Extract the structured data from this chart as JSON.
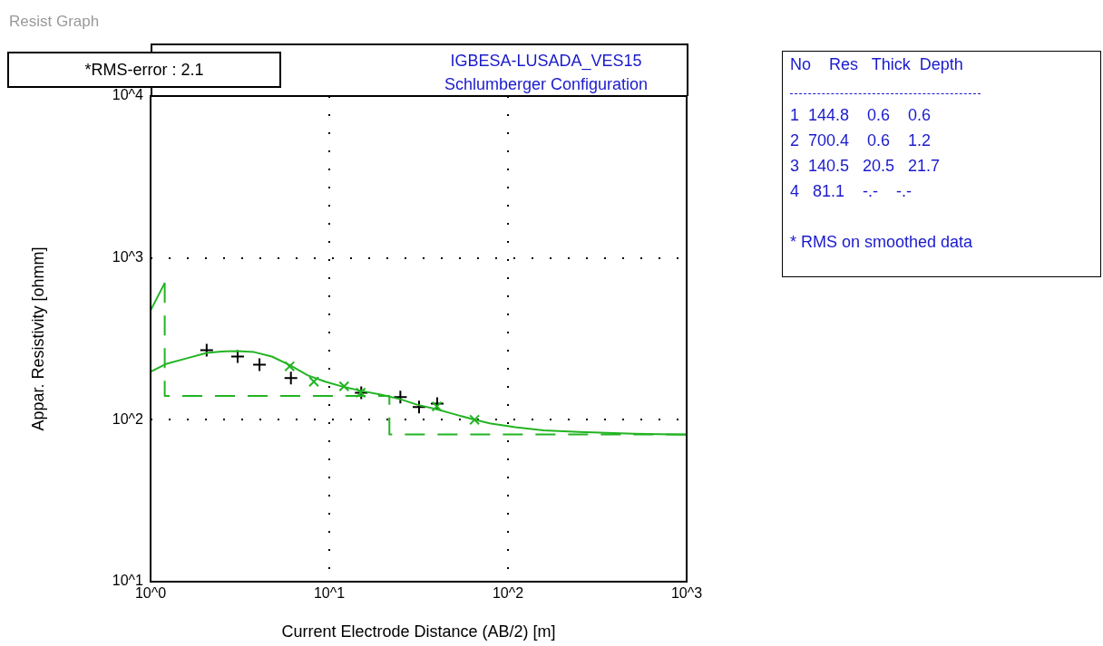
{
  "chart_data": {
    "type": "scatter",
    "title": "IGBESA-LUSADA_VES15",
    "subtitle": "Schlumberger Configuration",
    "xlabel": "Current Electrode Distance (AB/2) [m]",
    "ylabel": "Appar. Resistivity [ohmm]",
    "log": "xy",
    "grid": true,
    "legend": false,
    "xlim": [
      1,
      1000
    ],
    "xticks": [
      {
        "value": 1,
        "label": "10^0"
      },
      {
        "value": 10,
        "label": "10^1"
      },
      {
        "value": 100,
        "label": "10^2"
      },
      {
        "value": 1000,
        "label": "10^3"
      }
    ],
    "ylim": [
      10,
      10000
    ],
    "yticks": [
      {
        "value": 10,
        "label": "10^1"
      },
      {
        "value": 100,
        "label": "10^2"
      },
      {
        "value": 1000,
        "label": "10^3"
      },
      {
        "value": 10000,
        "label": "10^4"
      }
    ],
    "series": [
      {
        "type": "line",
        "color": "#22b422",
        "marker": "none",
        "line_style": "solid",
        "x": [
          1,
          1.23,
          1.6,
          2.06,
          2.5,
          3.07,
          3.8,
          4.77,
          6,
          7.6,
          9.5,
          12.2,
          15.5,
          19.4,
          25,
          31,
          40,
          49,
          63,
          79,
          110,
          158,
          250,
          510,
          1000
        ],
        "values": [
          198,
          222,
          240,
          259,
          264,
          266,
          262,
          246,
          218,
          188,
          172,
          159,
          150,
          143,
          134,
          124,
          116,
          109,
          101,
          95,
          90,
          86,
          84,
          82,
          81
        ]
      },
      {
        "type": "line",
        "color": "#22b422",
        "marker": "none",
        "line_style": "solid",
        "x": [
          1,
          1.2
        ],
        "values": [
          474,
          700
        ]
      },
      {
        "type": "line",
        "color": "#22b422",
        "marker": "none",
        "line_style": "dashed",
        "x": [
          1.2,
          1.2,
          21.7,
          21.7,
          1000
        ],
        "values": [
          700,
          140.5,
          140.5,
          81.1,
          81.1
        ]
      },
      {
        "type": "scatter",
        "color": "#22b422",
        "marker": "x",
        "x": [
          6,
          8.2,
          12.1,
          15,
          40,
          65
        ],
        "values": [
          214,
          172,
          161,
          147,
          121,
          100
        ]
      },
      {
        "type": "scatter",
        "color": "#000000",
        "marker": "cross",
        "x": [
          2.06,
          3.07,
          4.07,
          6.1,
          15.1,
          25,
          31.8,
          40.2
        ],
        "values": [
          269,
          246,
          219,
          181,
          147,
          138,
          120,
          126
        ]
      }
    ],
    "annotations": [
      "Resist Graph",
      "*RMS-error :   2.1",
      "No    Res   Thick  Depth",
      "1  144.8    0.6    0.6",
      "2  700.4    0.6    1.2",
      "3  140.5   20.5   21.7",
      "4   81.1    -.-    -.-",
      "* RMS on smoothed data"
    ]
  }
}
